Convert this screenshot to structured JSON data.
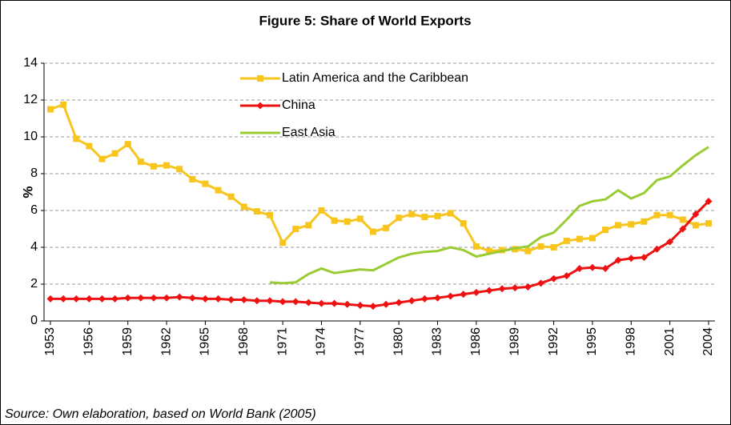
{
  "chart_data": {
    "type": "line",
    "title": "Figure 5: Share of World Exports",
    "ylabel": "%",
    "source": "Source: Own elaboration, based on World Bank (2005)",
    "x": [
      1953,
      1954,
      1955,
      1956,
      1957,
      1958,
      1959,
      1960,
      1961,
      1962,
      1963,
      1964,
      1965,
      1966,
      1967,
      1968,
      1969,
      1970,
      1971,
      1972,
      1973,
      1974,
      1975,
      1976,
      1977,
      1978,
      1979,
      1980,
      1981,
      1982,
      1983,
      1984,
      1985,
      1986,
      1987,
      1988,
      1989,
      1990,
      1991,
      1992,
      1993,
      1994,
      1995,
      1996,
      1997,
      1998,
      1999,
      2000,
      2001,
      2002,
      2003,
      2004
    ],
    "xlim": [
      1953,
      2004
    ],
    "xticks": [
      1953,
      1956,
      1959,
      1962,
      1965,
      1968,
      1971,
      1974,
      1977,
      1980,
      1983,
      1986,
      1989,
      1992,
      1995,
      1998,
      2001,
      2004
    ],
    "ylim": [
      0,
      14
    ],
    "yticks": [
      0,
      2,
      4,
      6,
      8,
      10,
      12,
      14
    ],
    "grid": true,
    "series": [
      {
        "name": "Latin America and the Caribbean",
        "color": "#f7c51e",
        "marker": "square",
        "values": [
          11.5,
          11.75,
          9.9,
          9.5,
          8.8,
          9.1,
          9.6,
          8.65,
          8.4,
          8.45,
          8.25,
          7.7,
          7.45,
          7.1,
          6.75,
          6.2,
          5.95,
          5.75,
          4.25,
          5.0,
          5.2,
          6.0,
          5.45,
          5.4,
          5.55,
          4.85,
          5.05,
          5.6,
          5.8,
          5.65,
          5.7,
          5.85,
          5.3,
          4.05,
          3.8,
          3.85,
          3.9,
          3.8,
          4.05,
          4.0,
          4.35,
          4.45,
          4.5,
          4.95,
          5.2,
          5.25,
          5.4,
          5.75,
          5.75,
          5.5,
          5.2,
          5.3
        ]
      },
      {
        "name": "China",
        "color": "#ee1111",
        "marker": "diamond",
        "values": [
          1.2,
          1.2,
          1.2,
          1.2,
          1.2,
          1.2,
          1.25,
          1.25,
          1.25,
          1.25,
          1.3,
          1.25,
          1.2,
          1.2,
          1.15,
          1.15,
          1.1,
          1.1,
          1.05,
          1.05,
          1.0,
          0.95,
          0.95,
          0.9,
          0.85,
          0.8,
          0.9,
          1.0,
          1.1,
          1.2,
          1.25,
          1.35,
          1.45,
          1.55,
          1.65,
          1.75,
          1.8,
          1.85,
          2.05,
          2.3,
          2.45,
          2.85,
          2.9,
          2.85,
          3.3,
          3.4,
          3.45,
          3.9,
          4.3,
          5.0,
          5.8,
          6.5
        ]
      },
      {
        "name": "East Asia",
        "color": "#99cc33",
        "marker": "none",
        "values": [
          null,
          null,
          null,
          null,
          null,
          null,
          null,
          null,
          null,
          null,
          null,
          null,
          null,
          null,
          null,
          null,
          null,
          2.1,
          2.05,
          2.1,
          2.55,
          2.85,
          2.6,
          2.7,
          2.8,
          2.75,
          3.1,
          3.45,
          3.65,
          3.75,
          3.8,
          4.0,
          3.85,
          3.5,
          3.65,
          3.8,
          3.95,
          4.05,
          4.55,
          4.8,
          5.5,
          6.25,
          6.5,
          6.6,
          7.1,
          6.65,
          6.95,
          7.65,
          7.85,
          8.45,
          9.0,
          9.45
        ]
      }
    ]
  }
}
